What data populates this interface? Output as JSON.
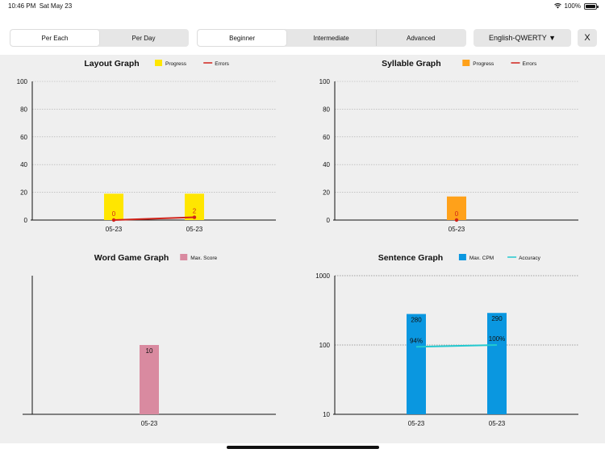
{
  "status_bar": {
    "time": "10:46 PM",
    "date": "Sat May 23",
    "battery": "100%"
  },
  "toolbar": {
    "mode_options": [
      "Per Each",
      "Per Day"
    ],
    "mode_selected": 0,
    "level_options": [
      "Beginner",
      "Intermediate",
      "Advanced"
    ],
    "level_selected": 0,
    "language_label": "English-QWERTY ▼",
    "close_label": "X"
  },
  "chart_data": [
    {
      "id": "layout",
      "type": "bar",
      "title": "Layout Graph",
      "categories": [
        "05-23",
        "05-23"
      ],
      "series": [
        {
          "name": "Progress",
          "kind": "bar",
          "values": [
            19,
            19
          ],
          "color": "#ffe600",
          "labels": [
            "",
            ""
          ]
        },
        {
          "name": "Errors",
          "kind": "line",
          "values": [
            0,
            2
          ],
          "color": "#d0231a",
          "labels": [
            "0",
            "2"
          ]
        }
      ],
      "ylim": [
        0,
        100
      ],
      "yticks": [
        "0",
        "20",
        "40",
        "60",
        "80",
        "100"
      ],
      "scale": "linear",
      "grid": true,
      "legend": "top"
    },
    {
      "id": "syllable",
      "type": "bar",
      "title": "Syllable Graph",
      "categories": [
        "05-23"
      ],
      "series": [
        {
          "name": "Progress",
          "kind": "bar",
          "values": [
            17
          ],
          "color": "#ffa11a",
          "labels": [
            ""
          ]
        },
        {
          "name": "Errors",
          "kind": "line",
          "values": [
            0
          ],
          "color": "#d0231a",
          "labels": [
            "0"
          ]
        }
      ],
      "ylim": [
        0,
        100
      ],
      "yticks": [
        "0",
        "20",
        "40",
        "60",
        "80",
        "100"
      ],
      "scale": "linear",
      "grid": true,
      "legend": "top"
    },
    {
      "id": "word",
      "type": "bar",
      "title": "Word Game Graph",
      "categories": [
        "05-23"
      ],
      "series": [
        {
          "name": "Max. Score",
          "kind": "bar",
          "values": [
            10
          ],
          "color": "#d98aa0",
          "labels": [
            "10"
          ]
        }
      ],
      "ylim": [
        0,
        20
      ],
      "yticks": [],
      "scale": "linear",
      "grid": false,
      "legend": "top"
    },
    {
      "id": "sentence",
      "type": "bar",
      "title": "Sentence Graph",
      "categories": [
        "05-23",
        "05-23"
      ],
      "series": [
        {
          "name": "Max. CPM",
          "kind": "bar",
          "values": [
            280,
            290
          ],
          "color": "#0a97e0",
          "labels": [
            "280",
            "290"
          ]
        },
        {
          "name": "Accuracy",
          "kind": "line",
          "values": [
            94,
            100
          ],
          "color": "#22c9cf",
          "labels": [
            "94%",
            "100%"
          ]
        }
      ],
      "ylim": [
        10,
        1000
      ],
      "yticks": [
        "10",
        "100",
        "1000"
      ],
      "scale": "log",
      "grid": true,
      "legend": "top"
    }
  ]
}
